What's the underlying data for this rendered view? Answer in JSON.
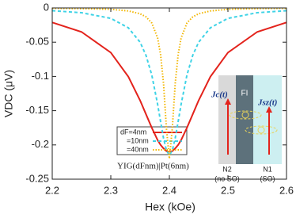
{
  "chart_data": {
    "type": "line",
    "xlabel": "Hex (kOe)",
    "ylabel": "VDC (μV)",
    "x": [
      2.2,
      2.25,
      2.3,
      2.33,
      2.35,
      2.36,
      2.37,
      2.38,
      2.385,
      2.39,
      2.395,
      2.4,
      2.405,
      2.41,
      2.415,
      2.42,
      2.43,
      2.44,
      2.45,
      2.47,
      2.5,
      2.55,
      2.6
    ],
    "series": [
      {
        "name": "dF=4nm",
        "color": "#e3231c",
        "dash": "solid",
        "values": [
          -0.0212,
          -0.035,
          -0.0652,
          -0.1005,
          -0.135,
          -0.155,
          -0.175,
          -0.193,
          -0.2,
          -0.205,
          -0.209,
          -0.21,
          -0.209,
          -0.205,
          -0.2,
          -0.193,
          -0.175,
          -0.155,
          -0.135,
          -0.1005,
          -0.0652,
          -0.035,
          -0.0212
        ]
      },
      {
        "name": "=10nm",
        "color": "#3fd3e6",
        "dash": "dashed",
        "values": [
          -0.004,
          -0.007,
          -0.0152,
          -0.029,
          -0.05,
          -0.069,
          -0.098,
          -0.141,
          -0.166,
          -0.19,
          -0.208,
          -0.215,
          -0.208,
          -0.19,
          -0.166,
          -0.141,
          -0.098,
          -0.069,
          -0.05,
          -0.029,
          -0.0152,
          -0.007,
          -0.004
        ]
      },
      {
        "name": "=40nm",
        "color": "#f2b705",
        "dash": "dotted",
        "values": [
          -0.0005,
          -0.001,
          -0.002,
          -0.0044,
          -0.0085,
          -0.013,
          -0.022,
          -0.044,
          -0.068,
          -0.11,
          -0.176,
          -0.22,
          -0.176,
          -0.11,
          -0.068,
          -0.044,
          -0.022,
          -0.013,
          -0.0085,
          -0.0044,
          -0.002,
          -0.001,
          -0.0005
        ]
      }
    ],
    "xlim": [
      2.2,
      2.6
    ],
    "xticks": [
      2.2,
      2.3,
      2.4,
      2.5,
      2.6
    ],
    "ylim": [
      -0.25,
      0
    ],
    "yticks": [
      0,
      -0.05,
      -0.1,
      -0.15,
      -0.2,
      -0.25
    ],
    "grid": false,
    "annotation": "YIG(dFnm)|Pt(6nm)",
    "inset": {
      "fi": "FI",
      "jc": "Jc(t)",
      "js": "Jsz(t)",
      "n2": "N2",
      "n2_note": "(no SO)",
      "n1": "N1",
      "n1_note": "(SO)"
    }
  }
}
